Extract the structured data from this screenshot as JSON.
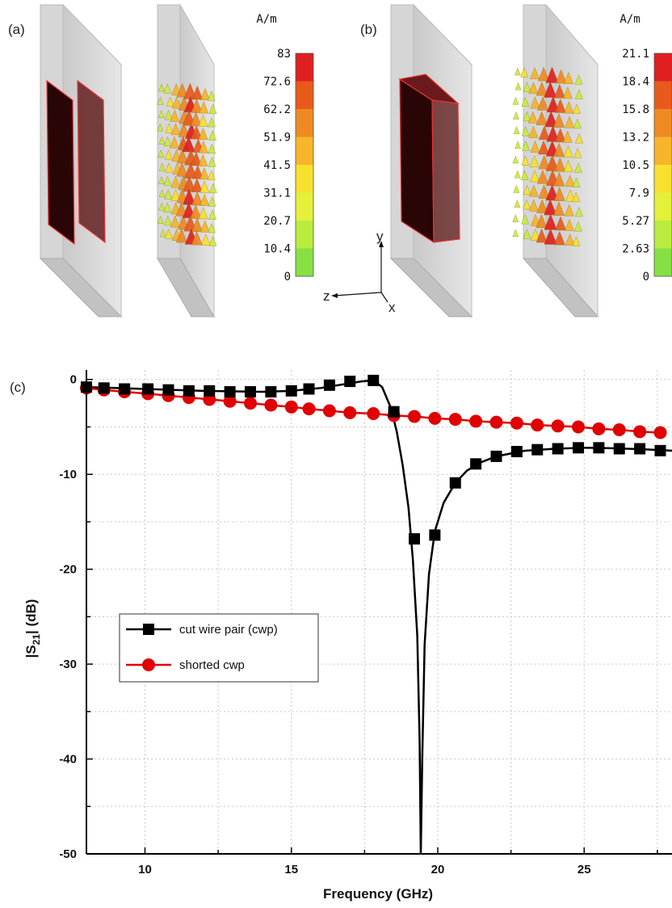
{
  "panels": {
    "a": {
      "label": "(a)",
      "unit": "A/m",
      "scale": [
        "83",
        "72.6",
        "62.2",
        "51.9",
        "41.5",
        "31.1",
        "20.7",
        "10.4",
        "0"
      ]
    },
    "b": {
      "label": "(b)",
      "unit": "A/m",
      "scale": [
        "21.1",
        "18.4",
        "15.8",
        "13.2",
        "10.5",
        "7.9",
        "5.27",
        "2.63",
        "0"
      ]
    },
    "c": {
      "label": "(c)"
    }
  },
  "axes_glyph": {
    "y": "y",
    "z": "z",
    "x": "x"
  },
  "colors": {
    "scale": [
      "#e02020",
      "#e85a1c",
      "#ef8a22",
      "#f6b52a",
      "#f7e12e",
      "#e4f03a",
      "#b9ec3e",
      "#86e043"
    ],
    "cwp": "#000000",
    "shorted": "#e00000"
  },
  "chart_data": {
    "type": "line",
    "xlabel": "Frequency (GHz)",
    "ylabel": "|S21| (dB)",
    "ylabel_main": "|S",
    "ylabel_sub": "21",
    "ylabel_end": "| (dB)",
    "xlim": [
      8,
      28
    ],
    "ylim": [
      -50,
      1
    ],
    "xticks": [
      10,
      15,
      20,
      25
    ],
    "yticks": [
      0,
      -10,
      -20,
      -30,
      -40,
      -50
    ],
    "grid": true,
    "legend_position": "left-middle",
    "series": [
      {
        "name": "cut wire pair (cwp)",
        "marker": "square",
        "color": "#000000",
        "x": [
          8.0,
          8.6,
          9.3,
          10.1,
          10.8,
          11.5,
          12.2,
          12.9,
          13.6,
          14.3,
          15.0,
          15.6,
          16.3,
          17.0,
          17.8,
          18.5,
          19.2,
          19.9,
          20.6,
          21.3,
          22.0,
          22.7,
          23.4,
          24.1,
          24.8,
          25.5,
          26.2,
          26.9,
          27.6
        ],
        "y": [
          -0.8,
          -0.9,
          -1.0,
          -1.0,
          -1.1,
          -1.2,
          -1.2,
          -1.3,
          -1.3,
          -1.3,
          -1.2,
          -1.0,
          -0.6,
          -0.2,
          -0.1,
          -3.4,
          -16.8,
          -16.4,
          -10.9,
          -8.9,
          -8.1,
          -7.6,
          -7.4,
          -7.3,
          -7.2,
          -7.2,
          -7.3,
          -7.3,
          -7.5
        ],
        "curve": {
          "x": [
            8.0,
            10.0,
            12.0,
            14.0,
            15.0,
            16.0,
            16.8,
            17.4,
            17.8,
            18.1,
            18.4,
            18.6,
            18.8,
            19.0,
            19.15,
            19.3,
            19.38,
            19.42,
            19.47,
            19.55,
            19.7,
            19.9,
            20.2,
            20.6,
            21.0,
            21.5,
            22.0,
            23.0,
            24.0,
            25.0,
            26.0,
            27.0,
            28.0
          ],
          "y": [
            -0.8,
            -1.0,
            -1.2,
            -1.3,
            -1.2,
            -0.9,
            -0.5,
            -0.2,
            -0.1,
            -0.8,
            -3.0,
            -5.5,
            -9.0,
            -13.5,
            -19.0,
            -27.0,
            -38.0,
            -50.0,
            -40.0,
            -28.0,
            -20.5,
            -16.0,
            -13.0,
            -10.9,
            -9.6,
            -8.7,
            -8.1,
            -7.5,
            -7.3,
            -7.2,
            -7.25,
            -7.35,
            -7.5
          ]
        }
      },
      {
        "name": "shorted cwp",
        "marker": "circle",
        "color": "#e00000",
        "x": [
          8.0,
          8.6,
          9.3,
          10.1,
          10.8,
          11.5,
          12.2,
          12.9,
          13.6,
          14.3,
          15.0,
          15.6,
          16.3,
          17.0,
          17.8,
          18.5,
          19.2,
          19.9,
          20.6,
          21.3,
          22.0,
          22.7,
          23.4,
          24.1,
          24.8,
          25.5,
          26.2,
          26.9,
          27.6
        ],
        "y": [
          -0.9,
          -1.1,
          -1.3,
          -1.5,
          -1.7,
          -1.9,
          -2.1,
          -2.3,
          -2.5,
          -2.7,
          -2.9,
          -3.1,
          -3.3,
          -3.5,
          -3.6,
          -3.8,
          -3.9,
          -4.1,
          -4.2,
          -4.4,
          -4.5,
          -4.6,
          -4.8,
          -4.9,
          -5.0,
          -5.2,
          -5.3,
          -5.5,
          -5.6
        ]
      }
    ]
  }
}
